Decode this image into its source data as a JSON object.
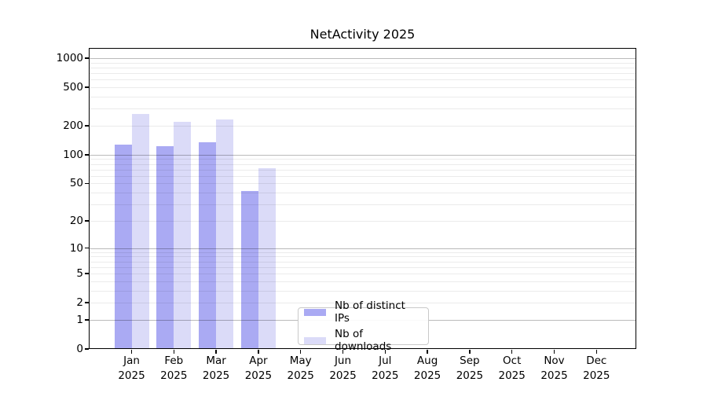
{
  "title": "NetActivity 2025",
  "chart_data": {
    "type": "bar",
    "title": "NetActivity 2025",
    "y_scale": "log10(value+1), 0 at baseline",
    "categories": [
      "Jan",
      "Feb",
      "Mar",
      "Apr",
      "May",
      "Jun",
      "Jul",
      "Aug",
      "Sep",
      "Oct",
      "Nov",
      "Dec"
    ],
    "x_year_label": "2025",
    "series": [
      {
        "name": "Nb of distinct IPs",
        "color": "#aaaaf3",
        "values": [
          127,
          123,
          136,
          42,
          null,
          null,
          null,
          null,
          null,
          null,
          null,
          null
        ]
      },
      {
        "name": "Nb of downloads",
        "color": "#dbdbf8",
        "values": [
          265,
          220,
          234,
          72,
          null,
          null,
          null,
          null,
          null,
          null,
          null,
          null
        ]
      }
    ],
    "y_ticks": [
      0,
      1,
      2,
      5,
      10,
      20,
      50,
      100,
      200,
      500,
      1000
    ],
    "ylim": [
      0,
      1280
    ],
    "grid": "horizontal; light minor lines at 2-9,20-90,200-900 and darker major lines at 1,10,100,1000, drawn over the bars",
    "legend_position": "inside, bottom center"
  },
  "colors": {
    "background": "#ffffff",
    "axis": "#000000",
    "text": "#000000",
    "legend_border": "#c9c9c9"
  }
}
